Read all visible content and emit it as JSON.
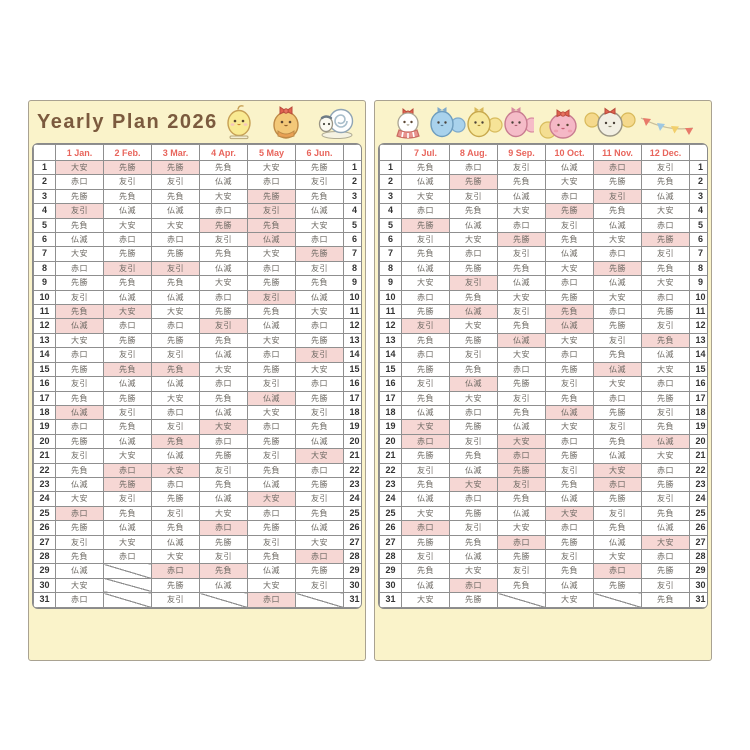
{
  "title": "Yearly Plan 2026",
  "colors": {
    "page_background": "#FAF3CA",
    "highlight_pink": "#F6D7D4",
    "month_label_red": "#E8655C",
    "rokuyo_text_gray": "#6C6862",
    "title_brown": "#7B5A3E"
  },
  "left_page": {
    "characters": [
      "chick-character-icon",
      "ribbon-chick-character-icon",
      "snail-character-icon",
      "bird-pair-character-icon"
    ],
    "months": [
      {
        "label": "1 Jan.",
        "rokuyo": [
          "大安",
          "赤口",
          "先勝",
          "友引",
          "先負",
          "仏滅",
          "大安",
          "赤口",
          "先勝",
          "友引",
          "先負",
          "仏滅",
          "大安",
          "赤口",
          "先勝",
          "友引",
          "先負",
          "仏滅",
          "赤口",
          "先勝",
          "友引",
          "先負",
          "仏滅",
          "大安",
          "赤口",
          "先勝",
          "友引",
          "先負",
          "仏滅",
          "大安",
          "赤口"
        ],
        "highlighted": [
          1,
          4,
          11,
          12,
          18,
          25
        ]
      },
      {
        "label": "2 Feb.",
        "rokuyo": [
          "先勝",
          "友引",
          "先負",
          "仏滅",
          "大安",
          "赤口",
          "先勝",
          "友引",
          "先負",
          "仏滅",
          "大安",
          "赤口",
          "先勝",
          "友引",
          "先負",
          "仏滅",
          "先勝",
          "友引",
          "先負",
          "仏滅",
          "大安",
          "赤口",
          "先勝",
          "友引",
          "先負",
          "仏滅",
          "大安",
          "赤口"
        ],
        "highlighted": [
          1,
          8,
          11,
          15,
          22,
          23
        ]
      },
      {
        "label": "3 Mar.",
        "rokuyo": [
          "先勝",
          "友引",
          "先負",
          "仏滅",
          "大安",
          "赤口",
          "先勝",
          "友引",
          "先負",
          "仏滅",
          "大安",
          "赤口",
          "先勝",
          "友引",
          "先負",
          "仏滅",
          "大安",
          "赤口",
          "友引",
          "先負",
          "仏滅",
          "大安",
          "赤口",
          "先勝",
          "友引",
          "先負",
          "仏滅",
          "大安",
          "赤口",
          "先勝",
          "友引"
        ],
        "highlighted": [
          1,
          8,
          15,
          20,
          22,
          29
        ]
      },
      {
        "label": "4 Apr.",
        "rokuyo": [
          "先負",
          "仏滅",
          "大安",
          "赤口",
          "先勝",
          "友引",
          "先負",
          "仏滅",
          "大安",
          "赤口",
          "先勝",
          "友引",
          "先負",
          "仏滅",
          "大安",
          "赤口",
          "先負",
          "仏滅",
          "大安",
          "赤口",
          "先勝",
          "友引",
          "先負",
          "仏滅",
          "大安",
          "赤口",
          "先勝",
          "友引",
          "先負",
          "仏滅"
        ],
        "highlighted": [
          5,
          12,
          19,
          26,
          29
        ]
      },
      {
        "label": "5 May",
        "rokuyo": [
          "大安",
          "赤口",
          "先勝",
          "友引",
          "先負",
          "仏滅",
          "大安",
          "赤口",
          "先勝",
          "友引",
          "先負",
          "仏滅",
          "大安",
          "赤口",
          "先勝",
          "友引",
          "仏滅",
          "大安",
          "赤口",
          "先勝",
          "友引",
          "先負",
          "仏滅",
          "大安",
          "赤口",
          "先勝",
          "友引",
          "先負",
          "仏滅",
          "大安",
          "赤口"
        ],
        "highlighted": [
          3,
          4,
          5,
          6,
          10,
          17,
          24,
          31
        ]
      },
      {
        "label": "6 Jun.",
        "rokuyo": [
          "先勝",
          "友引",
          "先負",
          "仏滅",
          "大安",
          "赤口",
          "先勝",
          "友引",
          "先負",
          "仏滅",
          "大安",
          "赤口",
          "先勝",
          "友引",
          "大安",
          "赤口",
          "先勝",
          "友引",
          "先負",
          "仏滅",
          "大安",
          "赤口",
          "先勝",
          "友引",
          "先負",
          "仏滅",
          "大安",
          "赤口",
          "先勝",
          "友引"
        ],
        "highlighted": [
          7,
          14,
          21,
          28
        ]
      }
    ]
  },
  "right_page": {
    "characters": [
      "dress-bird-character-icon",
      "cheer-trio-character-icon",
      "bow-bird-character-icon",
      "pom-bird-character-icon",
      "garland-icon"
    ],
    "months": [
      {
        "label": "7 Jul.",
        "rokuyo": [
          "先負",
          "仏滅",
          "大安",
          "赤口",
          "先勝",
          "友引",
          "先負",
          "仏滅",
          "大安",
          "赤口",
          "先勝",
          "友引",
          "先負",
          "赤口",
          "先勝",
          "友引",
          "先負",
          "仏滅",
          "大安",
          "赤口",
          "先勝",
          "友引",
          "先負",
          "仏滅",
          "大安",
          "赤口",
          "先勝",
          "友引",
          "先負",
          "仏滅",
          "大安"
        ],
        "highlighted": [
          5,
          12,
          19,
          20,
          26
        ]
      },
      {
        "label": "8 Aug.",
        "rokuyo": [
          "赤口",
          "先勝",
          "友引",
          "先負",
          "仏滅",
          "大安",
          "赤口",
          "先勝",
          "友引",
          "先負",
          "仏滅",
          "大安",
          "先勝",
          "友引",
          "先負",
          "仏滅",
          "大安",
          "赤口",
          "先勝",
          "友引",
          "先負",
          "仏滅",
          "大安",
          "赤口",
          "先勝",
          "友引",
          "先負",
          "仏滅",
          "大安",
          "赤口",
          "先勝"
        ],
        "highlighted": [
          2,
          9,
          11,
          16,
          23,
          30
        ]
      },
      {
        "label": "9 Sep.",
        "rokuyo": [
          "友引",
          "先負",
          "仏滅",
          "大安",
          "赤口",
          "先勝",
          "友引",
          "先負",
          "仏滅",
          "大安",
          "友引",
          "先負",
          "仏滅",
          "大安",
          "赤口",
          "先勝",
          "友引",
          "先負",
          "仏滅",
          "大安",
          "赤口",
          "先勝",
          "友引",
          "先負",
          "仏滅",
          "大安",
          "赤口",
          "先勝",
          "友引",
          "先負"
        ],
        "highlighted": [
          6,
          13,
          20,
          21,
          22,
          23,
          27
        ]
      },
      {
        "label": "10 Oct.",
        "rokuyo": [
          "仏滅",
          "大安",
          "赤口",
          "先勝",
          "友引",
          "先負",
          "仏滅",
          "大安",
          "赤口",
          "先勝",
          "先負",
          "仏滅",
          "大安",
          "赤口",
          "先勝",
          "友引",
          "先負",
          "仏滅",
          "大安",
          "赤口",
          "先勝",
          "友引",
          "先負",
          "仏滅",
          "大安",
          "赤口",
          "先勝",
          "友引",
          "先負",
          "仏滅",
          "大安"
        ],
        "highlighted": [
          4,
          11,
          12,
          18,
          25
        ]
      },
      {
        "label": "11 Nov.",
        "rokuyo": [
          "赤口",
          "先勝",
          "友引",
          "先負",
          "仏滅",
          "大安",
          "赤口",
          "先勝",
          "仏滅",
          "大安",
          "赤口",
          "先勝",
          "友引",
          "先負",
          "仏滅",
          "大安",
          "赤口",
          "先勝",
          "友引",
          "先負",
          "仏滅",
          "大安",
          "赤口",
          "先勝",
          "友引",
          "先負",
          "仏滅",
          "大安",
          "赤口",
          "先勝"
        ],
        "highlighted": [
          1,
          3,
          8,
          15,
          22,
          23,
          29
        ]
      },
      {
        "label": "12 Dec.",
        "rokuyo": [
          "友引",
          "先負",
          "仏滅",
          "大安",
          "赤口",
          "先勝",
          "友引",
          "先負",
          "大安",
          "赤口",
          "先勝",
          "友引",
          "先負",
          "仏滅",
          "大安",
          "赤口",
          "先勝",
          "友引",
          "先負",
          "仏滅",
          "大安",
          "赤口",
          "先勝",
          "友引",
          "先負",
          "仏滅",
          "大安",
          "赤口",
          "先勝",
          "友引",
          "先負"
        ],
        "highlighted": [
          6,
          13,
          20,
          27
        ]
      }
    ]
  }
}
